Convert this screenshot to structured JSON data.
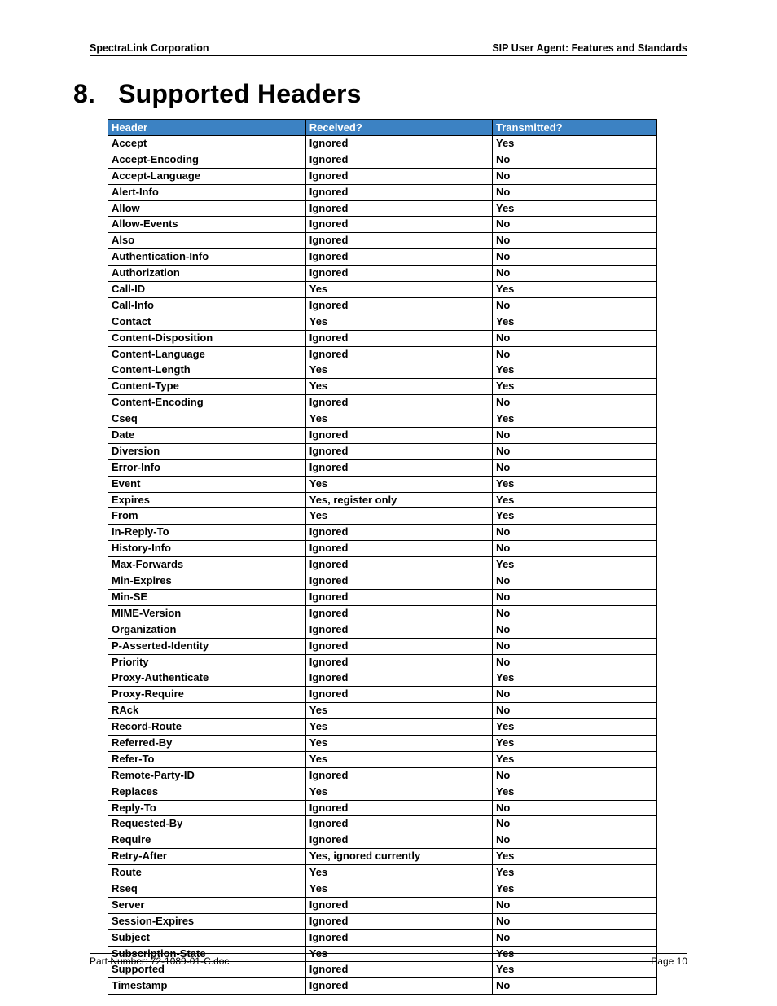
{
  "header": {
    "left": "SpectraLink Corporation",
    "right": "SIP User Agent: Features and Standards"
  },
  "section": {
    "number": "8.",
    "title": "Supported Headers"
  },
  "table": {
    "header_bg": "#3c82c3",
    "header_fg": "#ffffff",
    "border_color": "#000000",
    "columns": [
      "Header",
      "Received?",
      "Transmitted?"
    ],
    "col_widths_pct": [
      36,
      34,
      30
    ],
    "rows": [
      [
        "Accept",
        "Ignored",
        "Yes"
      ],
      [
        "Accept-Encoding",
        "Ignored",
        "No"
      ],
      [
        "Accept-Language",
        "Ignored",
        "No"
      ],
      [
        "Alert-Info",
        "Ignored",
        "No"
      ],
      [
        "Allow",
        "Ignored",
        "Yes"
      ],
      [
        "Allow-Events",
        "Ignored",
        "No"
      ],
      [
        "Also",
        "Ignored",
        "No"
      ],
      [
        "Authentication-Info",
        "Ignored",
        "No"
      ],
      [
        "Authorization",
        "Ignored",
        "No"
      ],
      [
        "Call-ID",
        "Yes",
        "Yes"
      ],
      [
        "Call-Info",
        "Ignored",
        "No"
      ],
      [
        "Contact",
        "Yes",
        "Yes"
      ],
      [
        "Content-Disposition",
        "Ignored",
        "No"
      ],
      [
        "Content-Language",
        "Ignored",
        "No"
      ],
      [
        "Content-Length",
        "Yes",
        "Yes"
      ],
      [
        "Content-Type",
        "Yes",
        "Yes"
      ],
      [
        "Content-Encoding",
        "Ignored",
        "No"
      ],
      [
        "Cseq",
        "Yes",
        "Yes"
      ],
      [
        "Date",
        "Ignored",
        "No"
      ],
      [
        "Diversion",
        "Ignored",
        "No"
      ],
      [
        "Error-Info",
        "Ignored",
        "No"
      ],
      [
        "Event",
        "Yes",
        "Yes"
      ],
      [
        "Expires",
        "Yes, register only",
        "Yes"
      ],
      [
        "From",
        "Yes",
        "Yes"
      ],
      [
        "In-Reply-To",
        "Ignored",
        "No"
      ],
      [
        "History-Info",
        "Ignored",
        "No"
      ],
      [
        "Max-Forwards",
        "Ignored",
        "Yes"
      ],
      [
        "Min-Expires",
        "Ignored",
        "No"
      ],
      [
        "Min-SE",
        "Ignored",
        "No"
      ],
      [
        "MIME-Version",
        "Ignored",
        "No"
      ],
      [
        "Organization",
        "Ignored",
        "No"
      ],
      [
        "P-Asserted-Identity",
        "Ignored",
        "No"
      ],
      [
        "Priority",
        "Ignored",
        "No"
      ],
      [
        "Proxy-Authenticate",
        "Ignored",
        "Yes"
      ],
      [
        "Proxy-Require",
        "Ignored",
        "No"
      ],
      [
        "RAck",
        "Yes",
        "No"
      ],
      [
        "Record-Route",
        "Yes",
        "Yes"
      ],
      [
        "Referred-By",
        "Yes",
        "Yes"
      ],
      [
        "Refer-To",
        "Yes",
        "Yes"
      ],
      [
        "Remote-Party-ID",
        "Ignored",
        "No"
      ],
      [
        "Replaces",
        "Yes",
        "Yes"
      ],
      [
        "Reply-To",
        "Ignored",
        "No"
      ],
      [
        "Requested-By",
        "Ignored",
        "No"
      ],
      [
        "Require",
        "Ignored",
        "No"
      ],
      [
        "Retry-After",
        "Yes, ignored currently",
        "Yes"
      ],
      [
        "Route",
        "Yes",
        "Yes"
      ],
      [
        "Rseq",
        "Yes",
        "Yes"
      ],
      [
        "Server",
        "Ignored",
        "No"
      ],
      [
        "Session-Expires",
        "Ignored",
        "No"
      ],
      [
        "Subject",
        "Ignored",
        "No"
      ],
      [
        "Subscription-State",
        "Yes",
        "Yes"
      ],
      [
        "Supported",
        "Ignored",
        "Yes"
      ],
      [
        "Timestamp",
        "Ignored",
        "No"
      ]
    ]
  },
  "footer": {
    "left": "Part Number: 72-1089-01-C.doc",
    "right": "Page 10"
  }
}
